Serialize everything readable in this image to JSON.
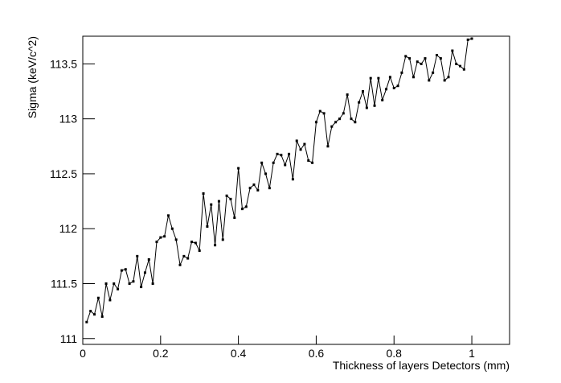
{
  "chart_data": {
    "type": "line",
    "xlabel": "Thickness of layers Detectors (mm)",
    "ylabel": "Sigma (keV/c^2)",
    "x": [
      0.01,
      0.02,
      0.03,
      0.04,
      0.05,
      0.06,
      0.07,
      0.08,
      0.09,
      0.1,
      0.11,
      0.12,
      0.13,
      0.14,
      0.15,
      0.16,
      0.17,
      0.18,
      0.19,
      0.2,
      0.21,
      0.22,
      0.23,
      0.24,
      0.25,
      0.26,
      0.27,
      0.28,
      0.29,
      0.3,
      0.31,
      0.32,
      0.33,
      0.34,
      0.35,
      0.36,
      0.37,
      0.38,
      0.39,
      0.4,
      0.41,
      0.42,
      0.43,
      0.44,
      0.45,
      0.46,
      0.47,
      0.48,
      0.49,
      0.5,
      0.51,
      0.52,
      0.53,
      0.54,
      0.55,
      0.56,
      0.57,
      0.58,
      0.59,
      0.6,
      0.61,
      0.62,
      0.63,
      0.64,
      0.65,
      0.66,
      0.67,
      0.68,
      0.69,
      0.7,
      0.71,
      0.72,
      0.73,
      0.74,
      0.75,
      0.76,
      0.77,
      0.78,
      0.79,
      0.8,
      0.81,
      0.82,
      0.83,
      0.84,
      0.85,
      0.86,
      0.87,
      0.88,
      0.89,
      0.9,
      0.91,
      0.92,
      0.93,
      0.94,
      0.95,
      0.96,
      0.97,
      0.98,
      0.99,
      1.0
    ],
    "series": [
      {
        "color": "#000000",
        "values": [
          111.15,
          111.25,
          111.22,
          111.37,
          111.2,
          111.5,
          111.35,
          111.5,
          111.45,
          111.62,
          111.63,
          111.5,
          111.52,
          111.75,
          111.47,
          111.6,
          111.72,
          111.5,
          111.88,
          111.92,
          111.93,
          112.12,
          112.0,
          111.9,
          111.67,
          111.75,
          111.73,
          111.88,
          111.87,
          111.8,
          112.32,
          112.02,
          112.22,
          111.85,
          112.25,
          111.9,
          112.3,
          112.27,
          112.1,
          112.55,
          112.18,
          112.2,
          112.37,
          112.4,
          112.35,
          112.6,
          112.5,
          112.37,
          112.6,
          112.68,
          112.67,
          112.58,
          112.68,
          112.45,
          112.8,
          112.72,
          112.77,
          112.62,
          112.6,
          112.97,
          113.07,
          113.05,
          112.75,
          112.93,
          112.97,
          113.0,
          113.05,
          113.22,
          113.0,
          112.97,
          113.15,
          113.25,
          113.1,
          113.37,
          113.12,
          113.37,
          113.17,
          113.27,
          113.38,
          113.28,
          113.3,
          113.42,
          113.57,
          113.55,
          113.38,
          113.52,
          113.5,
          113.55,
          113.35,
          113.42,
          113.58,
          113.55,
          113.35,
          113.38,
          113.62,
          113.5,
          113.48,
          113.45,
          113.72,
          113.73
        ]
      }
    ],
    "xlim": [
      0,
      1.097
    ],
    "xticks": [
      0,
      0.2,
      0.4,
      0.6,
      0.8,
      1
    ],
    "ylim": [
      110.947,
      113.752
    ],
    "yticks": [
      111,
      111.5,
      112,
      112.5,
      113,
      113.5
    ]
  }
}
